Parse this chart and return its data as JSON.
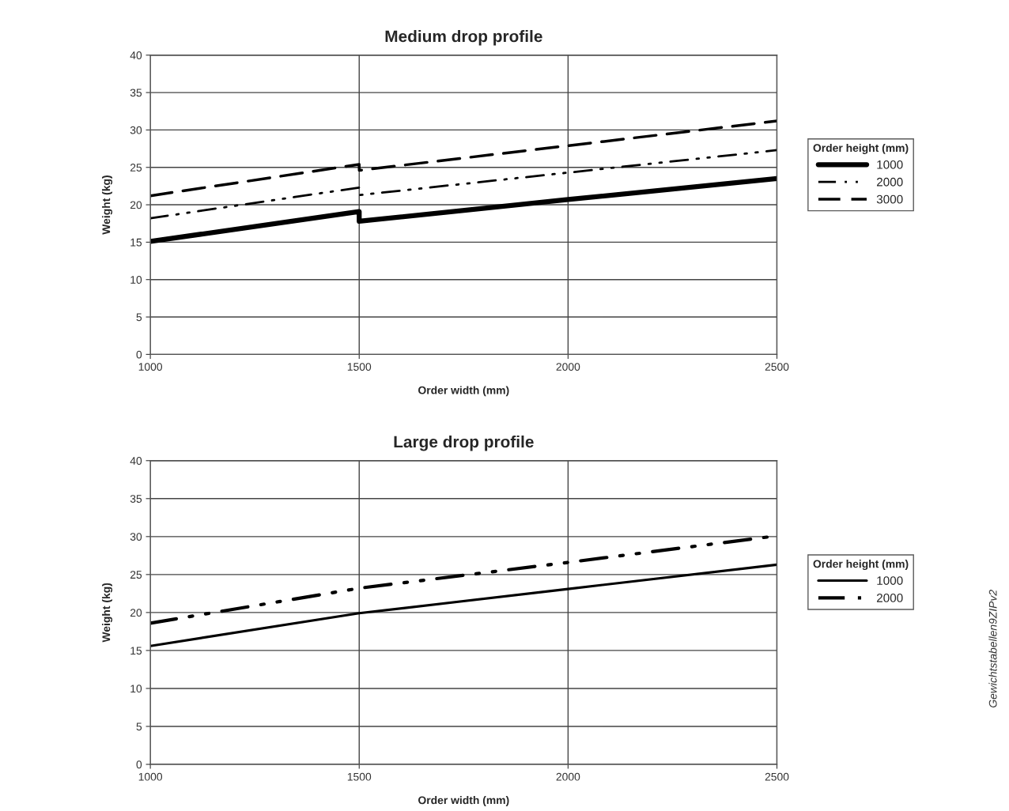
{
  "chart_data": [
    {
      "type": "line",
      "title": "Medium drop profile",
      "xlabel": "Order width (mm)",
      "ylabel": "Weight (kg)",
      "legend_title": "Order height (mm)",
      "legend": "right",
      "grid": true,
      "xlim": [
        1000,
        2500
      ],
      "xticks": [
        1000,
        1500,
        2000,
        2500
      ],
      "ylim": [
        0,
        40
      ],
      "yticks": [
        0,
        5,
        10,
        15,
        20,
        25,
        30,
        35,
        40
      ],
      "series": [
        {
          "name": "1000",
          "color": "#000000",
          "line_style": "solid",
          "x": [
            1000,
            1500,
            1500,
            2000,
            2500
          ],
          "values": [
            15.1,
            19.1,
            17.8,
            20.7,
            23.5
          ]
        },
        {
          "name": "2000",
          "color": "#000000",
          "line_style": "dashdotdot",
          "x": [
            1000,
            1500,
            1500,
            2500
          ],
          "values": [
            18.2,
            22.3,
            21.3,
            27.3
          ]
        },
        {
          "name": "3000",
          "color": "#000000",
          "line_style": "dashed",
          "x": [
            1000,
            1500,
            1500,
            2500
          ],
          "values": [
            21.2,
            25.4,
            24.6,
            31.2
          ]
        }
      ]
    },
    {
      "type": "line",
      "title": "Large drop profile",
      "xlabel": "Order width (mm)",
      "ylabel": "Weight (kg)",
      "legend_title": "Order height (mm)",
      "legend": "right",
      "grid": true,
      "xlim": [
        1000,
        2500
      ],
      "xticks": [
        1000,
        1500,
        2000,
        2500
      ],
      "ylim": [
        0,
        40
      ],
      "yticks": [
        0,
        5,
        10,
        15,
        20,
        25,
        30,
        35,
        40
      ],
      "annotations": [
        "Gewichtstabellen9ZIPv2"
      ],
      "series": [
        {
          "name": "1000",
          "color": "#000000",
          "line_style": "solid",
          "x": [
            1000,
            1500,
            2000,
            2500
          ],
          "values": [
            15.6,
            19.9,
            23.1,
            26.3
          ]
        },
        {
          "name": "2000",
          "color": "#000000",
          "line_style": "dashdotdot",
          "x": [
            1000,
            1500,
            2000,
            2500
          ],
          "values": [
            18.6,
            23.2,
            26.6,
            30.1
          ]
        }
      ]
    }
  ]
}
